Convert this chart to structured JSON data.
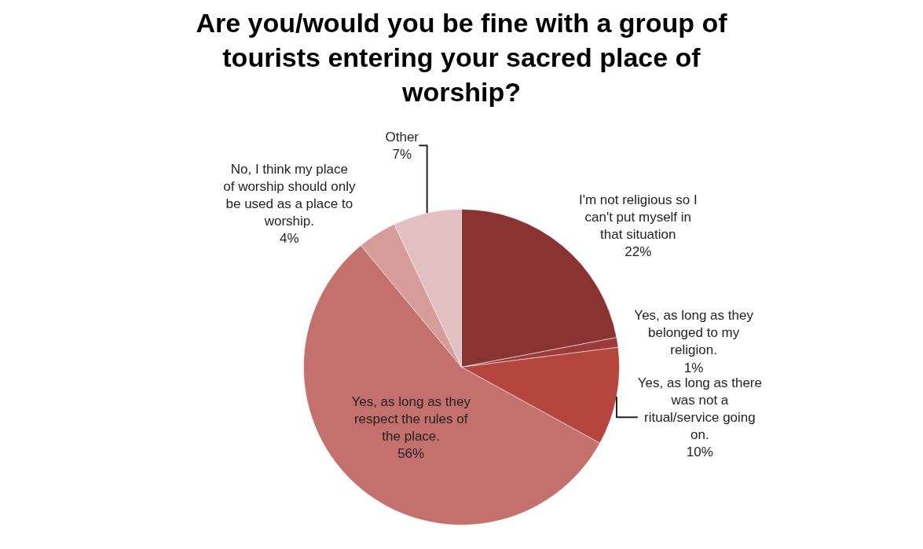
{
  "chart_data": {
    "type": "pie",
    "title": "Are you/would you be fine with a group of tourists entering your sacred place of worship?",
    "categories": [
      "I'm not religious so I can't put myself in that situation",
      "Yes, as long as they belonged to my religion.",
      "Yes, as long as there was not a ritual/service going on.",
      "Yes, as long as they respect the rules of the place.",
      "No, I think my place of worship should only be used as a place to worship.",
      "Other"
    ],
    "values": [
      22,
      1,
      10,
      56,
      4,
      7
    ],
    "value_labels": [
      "22%",
      "1%",
      "10%",
      "56%",
      "4%",
      "7%"
    ],
    "colors": [
      "#893432",
      "#9c3b39",
      "#b5453f",
      "#c4706c",
      "#d69c99",
      "#e2bfc0"
    ],
    "legend": false
  }
}
